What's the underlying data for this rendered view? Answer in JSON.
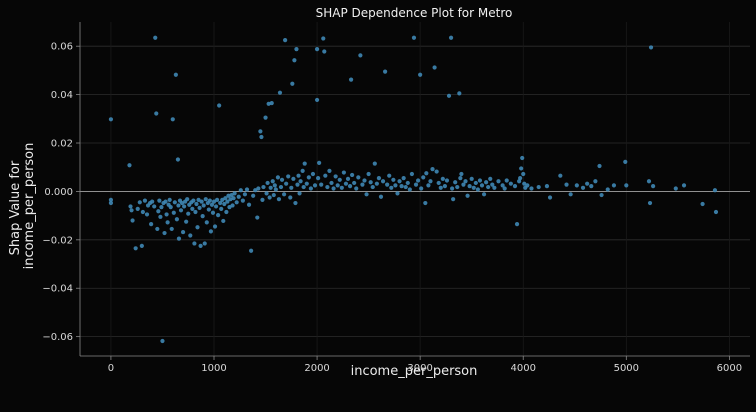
{
  "chart_data": {
    "type": "scatter",
    "title": "SHAP Dependence Plot for Metro",
    "xlabel": "income_per_person",
    "ylabel_lines": [
      "Shap Value for",
      "income_per_person"
    ],
    "xlim": [
      -300,
      6200
    ],
    "ylim": [
      -0.068,
      0.07
    ],
    "xticks": [
      0,
      1000,
      2000,
      3000,
      4000,
      5000,
      6000
    ],
    "xtick_labels": [
      "0",
      "1000",
      "2000",
      "3000",
      "4000",
      "5000",
      "6000"
    ],
    "yticks": [
      -0.06,
      -0.04,
      -0.02,
      0.0,
      0.02,
      0.04,
      0.06
    ],
    "ytick_labels": [
      "−0.06",
      "−0.04",
      "−0.02",
      "0.000",
      "0.02",
      "0.04",
      "0.06"
    ],
    "grid": true,
    "zero_line": true,
    "colors": {
      "background": "#060606",
      "point": "#3f87b4",
      "grid": "#2c2c2c",
      "zero_line": "#a0a0a0",
      "text": "#d8d8d8"
    },
    "series": [
      {
        "points": [
          [
            0,
            0.0298
          ],
          [
            0,
            -0.0035
          ],
          [
            0,
            -0.0048
          ],
          [
            180,
            0.0108
          ],
          [
            190,
            -0.0062
          ],
          [
            200,
            -0.0078
          ],
          [
            210,
            -0.012
          ],
          [
            240,
            -0.0235
          ],
          [
            260,
            -0.0072
          ],
          [
            280,
            -0.0045
          ],
          [
            300,
            -0.0225
          ],
          [
            310,
            -0.0085
          ],
          [
            330,
            -0.0038
          ],
          [
            350,
            -0.0095
          ],
          [
            360,
            -0.0058
          ],
          [
            380,
            -0.0048
          ],
          [
            390,
            -0.0135
          ],
          [
            400,
            -0.0042
          ],
          [
            420,
            -0.0062
          ],
          [
            430,
            0.0635
          ],
          [
            440,
            0.0322
          ],
          [
            450,
            -0.0155
          ],
          [
            460,
            -0.0082
          ],
          [
            470,
            -0.0038
          ],
          [
            480,
            -0.0105
          ],
          [
            490,
            -0.0065
          ],
          [
            500,
            -0.0618
          ],
          [
            510,
            -0.0048
          ],
          [
            520,
            -0.0172
          ],
          [
            530,
            -0.0042
          ],
          [
            540,
            -0.0095
          ],
          [
            550,
            -0.0128
          ],
          [
            560,
            -0.0055
          ],
          [
            570,
            -0.0035
          ],
          [
            580,
            -0.0065
          ],
          [
            590,
            -0.0155
          ],
          [
            600,
            0.0298
          ],
          [
            610,
            -0.0088
          ],
          [
            620,
            -0.0045
          ],
          [
            630,
            0.0482
          ],
          [
            640,
            -0.0115
          ],
          [
            650,
            0.0132
          ],
          [
            655,
            -0.0058
          ],
          [
            660,
            -0.0195
          ],
          [
            670,
            -0.0038
          ],
          [
            680,
            -0.0078
          ],
          [
            690,
            -0.0048
          ],
          [
            700,
            -0.0168
          ],
          [
            710,
            -0.0062
          ],
          [
            720,
            -0.0042
          ],
          [
            730,
            -0.0125
          ],
          [
            740,
            -0.0032
          ],
          [
            750,
            -0.0092
          ],
          [
            760,
            -0.0055
          ],
          [
            770,
            -0.0182
          ],
          [
            780,
            -0.0045
          ],
          [
            790,
            -0.0072
          ],
          [
            800,
            -0.0038
          ],
          [
            810,
            -0.0215
          ],
          [
            820,
            -0.0085
          ],
          [
            830,
            -0.0052
          ],
          [
            840,
            -0.0148
          ],
          [
            850,
            -0.0035
          ],
          [
            860,
            -0.0068
          ],
          [
            870,
            -0.0225
          ],
          [
            880,
            -0.0042
          ],
          [
            890,
            -0.0102
          ],
          [
            900,
            -0.0058
          ],
          [
            910,
            -0.0215
          ],
          [
            920,
            -0.0032
          ],
          [
            930,
            -0.0128
          ],
          [
            940,
            -0.0048
          ],
          [
            950,
            -0.0075
          ],
          [
            960,
            -0.0038
          ],
          [
            970,
            -0.0165
          ],
          [
            980,
            -0.0055
          ],
          [
            990,
            -0.0088
          ],
          [
            1000,
            -0.0042
          ],
          [
            1010,
            -0.0145
          ],
          [
            1020,
            -0.0062
          ],
          [
            1030,
            -0.0035
          ],
          [
            1040,
            -0.0098
          ],
          [
            1050,
            0.0355
          ],
          [
            1060,
            -0.0048
          ],
          [
            1070,
            -0.0072
          ],
          [
            1080,
            -0.0035
          ],
          [
            1090,
            -0.0122
          ],
          [
            1100,
            -0.0052
          ],
          [
            1110,
            -0.0028
          ],
          [
            1120,
            -0.0085
          ],
          [
            1130,
            -0.0042
          ],
          [
            1140,
            -0.0018
          ],
          [
            1150,
            -0.0065
          ],
          [
            1160,
            -0.0032
          ],
          [
            1170,
            -0.0015
          ],
          [
            1180,
            -0.0058
          ],
          [
            1190,
            -0.0028
          ],
          [
            1200,
            -0.0008
          ],
          [
            1220,
            -0.0045
          ],
          [
            1240,
            -0.0022
          ],
          [
            1260,
            0.0005
          ],
          [
            1280,
            -0.0038
          ],
          [
            1300,
            -0.0012
          ],
          [
            1320,
            0.0008
          ],
          [
            1340,
            -0.0055
          ],
          [
            1360,
            -0.0245
          ],
          [
            1380,
            -0.0018
          ],
          [
            1400,
            0.0005
          ],
          [
            1420,
            -0.0108
          ],
          [
            1430,
            0.0012
          ],
          [
            1450,
            0.0248
          ],
          [
            1460,
            0.0225
          ],
          [
            1470,
            -0.0035
          ],
          [
            1480,
            0.0018
          ],
          [
            1500,
            0.0305
          ],
          [
            1510,
            -0.0008
          ],
          [
            1520,
            0.0035
          ],
          [
            1530,
            0.0362
          ],
          [
            1540,
            -0.0025
          ],
          [
            1550,
            0.0015
          ],
          [
            1560,
            0.0365
          ],
          [
            1570,
            0.0042
          ],
          [
            1580,
            -0.0015
          ],
          [
            1590,
            0.0025
          ],
          [
            1600,
            0.0008
          ],
          [
            1620,
            0.0058
          ],
          [
            1630,
            -0.0032
          ],
          [
            1640,
            0.0408
          ],
          [
            1650,
            0.0018
          ],
          [
            1660,
            0.0048
          ],
          [
            1680,
            -0.0012
          ],
          [
            1690,
            0.0625
          ],
          [
            1700,
            0.0032
          ],
          [
            1720,
            0.0062
          ],
          [
            1740,
            -0.0025
          ],
          [
            1750,
            0.0015
          ],
          [
            1760,
            0.0445
          ],
          [
            1770,
            0.0052
          ],
          [
            1780,
            0.0542
          ],
          [
            1790,
            -0.0048
          ],
          [
            1800,
            0.0588
          ],
          [
            1810,
            0.0028
          ],
          [
            1820,
            0.0065
          ],
          [
            1830,
            -0.0008
          ],
          [
            1840,
            0.0042
          ],
          [
            1860,
            0.0085
          ],
          [
            1870,
            0.0018
          ],
          [
            1880,
            0.0115
          ],
          [
            1900,
            0.0032
          ],
          [
            1920,
            0.0058
          ],
          [
            1940,
            0.0012
          ],
          [
            1960,
            0.0072
          ],
          [
            1980,
            0.0025
          ],
          [
            2000,
            0.0588
          ],
          [
            2000,
            0.0378
          ],
          [
            2010,
            0.0055
          ],
          [
            2020,
            0.0118
          ],
          [
            2040,
            0.0028
          ],
          [
            2060,
            0.0632
          ],
          [
            2070,
            0.0578
          ],
          [
            2080,
            0.0065
          ],
          [
            2100,
            0.0018
          ],
          [
            2120,
            0.0085
          ],
          [
            2140,
            0.0035
          ],
          [
            2160,
            0.0012
          ],
          [
            2180,
            0.0062
          ],
          [
            2200,
            0.0025
          ],
          [
            2220,
            0.0048
          ],
          [
            2240,
            0.0015
          ],
          [
            2260,
            0.0078
          ],
          [
            2280,
            0.0032
          ],
          [
            2300,
            0.0052
          ],
          [
            2320,
            0.0022
          ],
          [
            2330,
            0.0462
          ],
          [
            2340,
            0.0068
          ],
          [
            2360,
            0.0035
          ],
          [
            2380,
            0.0012
          ],
          [
            2400,
            0.0058
          ],
          [
            2420,
            0.0562
          ],
          [
            2440,
            0.0028
          ],
          [
            2460,
            0.0045
          ],
          [
            2480,
            -0.0012
          ],
          [
            2500,
            0.0072
          ],
          [
            2520,
            0.0038
          ],
          [
            2540,
            0.0018
          ],
          [
            2560,
            0.0115
          ],
          [
            2580,
            0.0032
          ],
          [
            2600,
            0.0055
          ],
          [
            2620,
            -0.0022
          ],
          [
            2640,
            0.0042
          ],
          [
            2660,
            0.0495
          ],
          [
            2680,
            0.0028
          ],
          [
            2700,
            0.0065
          ],
          [
            2720,
            0.0015
          ],
          [
            2740,
            0.0048
          ],
          [
            2760,
            0.0025
          ],
          [
            2780,
            -0.0008
          ],
          [
            2800,
            0.0042
          ],
          [
            2820,
            0.0022
          ],
          [
            2840,
            0.0055
          ],
          [
            2860,
            0.0018
          ],
          [
            2880,
            0.0035
          ],
          [
            2900,
            0.0008
          ],
          [
            2920,
            0.0072
          ],
          [
            2940,
            0.0635
          ],
          [
            2960,
            0.0028
          ],
          [
            2980,
            0.0045
          ],
          [
            3000,
            0.0482
          ],
          [
            3010,
            0.0012
          ],
          [
            3030,
            0.0058
          ],
          [
            3050,
            -0.0048
          ],
          [
            3060,
            0.0075
          ],
          [
            3080,
            0.0025
          ],
          [
            3100,
            0.0042
          ],
          [
            3120,
            0.0092
          ],
          [
            3140,
            0.0512
          ],
          [
            3160,
            0.0082
          ],
          [
            3180,
            0.0035
          ],
          [
            3200,
            0.0015
          ],
          [
            3220,
            0.0052
          ],
          [
            3240,
            0.0022
          ],
          [
            3260,
            0.0045
          ],
          [
            3280,
            0.0395
          ],
          [
            3300,
            0.0635
          ],
          [
            3310,
            0.0012
          ],
          [
            3320,
            -0.0032
          ],
          [
            3340,
            0.0038
          ],
          [
            3360,
            0.0018
          ],
          [
            3380,
            0.0405
          ],
          [
            3390,
            0.0055
          ],
          [
            3400,
            0.0072
          ],
          [
            3420,
            0.0028
          ],
          [
            3440,
            0.0042
          ],
          [
            3460,
            -0.0018
          ],
          [
            3480,
            0.0022
          ],
          [
            3500,
            0.0052
          ],
          [
            3520,
            0.0015
          ],
          [
            3540,
            0.0035
          ],
          [
            3560,
            0.0008
          ],
          [
            3580,
            0.0045
          ],
          [
            3600,
            0.0025
          ],
          [
            3620,
            -0.0012
          ],
          [
            3640,
            0.0038
          ],
          [
            3660,
            0.0018
          ],
          [
            3680,
            0.0052
          ],
          [
            3700,
            0.0028
          ],
          [
            3720,
            0.0015
          ],
          [
            3760,
            0.0042
          ],
          [
            3800,
            0.0025
          ],
          [
            3820,
            0.0012
          ],
          [
            3840,
            0.0045
          ],
          [
            3880,
            0.0032
          ],
          [
            3920,
            0.0022
          ],
          [
            3940,
            -0.0135
          ],
          [
            3960,
            0.0042
          ],
          [
            3970,
            0.0055
          ],
          [
            3980,
            0.0095
          ],
          [
            3990,
            0.0138
          ],
          [
            4000,
            0.0072
          ],
          [
            4010,
            0.0032
          ],
          [
            4020,
            0.0015
          ],
          [
            4040,
            0.0025
          ],
          [
            4080,
            0.0012
          ],
          [
            4150,
            0.0018
          ],
          [
            4230,
            0.0022
          ],
          [
            4260,
            -0.0025
          ],
          [
            4360,
            0.0065
          ],
          [
            4420,
            0.0028
          ],
          [
            4460,
            -0.0012
          ],
          [
            4520,
            0.0025
          ],
          [
            4580,
            0.0015
          ],
          [
            4620,
            0.0032
          ],
          [
            4660,
            0.0022
          ],
          [
            4700,
            0.0042
          ],
          [
            4740,
            0.0105
          ],
          [
            4760,
            -0.0015
          ],
          [
            4820,
            0.0008
          ],
          [
            4880,
            0.0025
          ],
          [
            4990,
            0.0122
          ],
          [
            5000,
            0.0025
          ],
          [
            5220,
            0.0042
          ],
          [
            5230,
            -0.0048
          ],
          [
            5240,
            0.0595
          ],
          [
            5260,
            0.0022
          ],
          [
            5480,
            0.0012
          ],
          [
            5560,
            0.0025
          ],
          [
            5740,
            -0.0052
          ],
          [
            5860,
            0.0005
          ],
          [
            5870,
            -0.0085
          ]
        ]
      }
    ]
  }
}
